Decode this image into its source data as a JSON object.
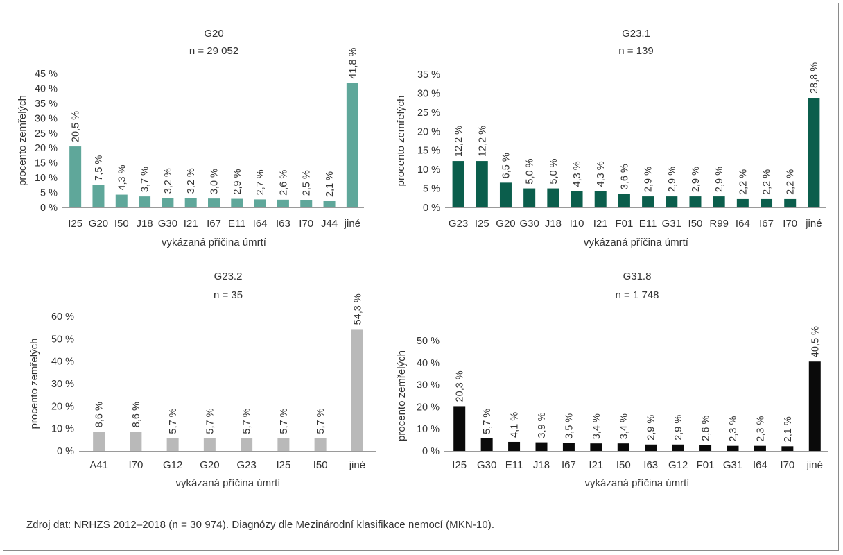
{
  "chart_data": [
    {
      "type": "bar",
      "title": "G20",
      "subtitle": "n = 29 052",
      "xlabel": "vykázaná příčina úmrtí",
      "ylabel": "procento zemřelých",
      "ylim": [
        0,
        45
      ],
      "yticks": [
        0,
        5,
        10,
        15,
        20,
        25,
        30,
        35,
        40,
        45
      ],
      "ytick_labels": [
        "0 %",
        "5 %",
        "10 %",
        "15 %",
        "20 %",
        "25 %",
        "30 %",
        "35 %",
        "40 %",
        "45 %"
      ],
      "color": "#5fa79a",
      "grid": false,
      "categories": [
        "I25",
        "G20",
        "I50",
        "J18",
        "G30",
        "I21",
        "I67",
        "E11",
        "I64",
        "I63",
        "I70",
        "J44",
        "jiné"
      ],
      "values": [
        20.5,
        7.5,
        4.3,
        3.7,
        3.2,
        3.2,
        3.0,
        2.9,
        2.7,
        2.6,
        2.5,
        2.1,
        41.8
      ],
      "data_labels": [
        "20,5 %",
        "7,5 %",
        "4,3 %",
        "3,7 %",
        "3,2 %",
        "3,2 %",
        "3,0 %",
        "2,9 %",
        "2,7 %",
        "2,6 %",
        "2,5 %",
        "2,1 %",
        "41,8 %"
      ]
    },
    {
      "type": "bar",
      "title": "G23.1",
      "subtitle": "n = 139",
      "xlabel": "vykázaná příčina úmrtí",
      "ylabel": "procento zemřelých",
      "ylim": [
        0,
        35
      ],
      "yticks": [
        0,
        5,
        10,
        15,
        20,
        25,
        30,
        35
      ],
      "ytick_labels": [
        "0 %",
        "5 %",
        "10 %",
        "15 %",
        "20 %",
        "25 %",
        "30 %",
        "35 %"
      ],
      "color": "#0b5e4c",
      "grid": false,
      "categories": [
        "G23",
        "I25",
        "G20",
        "G30",
        "J18",
        "I10",
        "I21",
        "F01",
        "E11",
        "G31",
        "I50",
        "R99",
        "I64",
        "I67",
        "I70",
        "jiné"
      ],
      "values": [
        12.2,
        12.2,
        6.5,
        5.0,
        5.0,
        4.3,
        4.3,
        3.6,
        2.9,
        2.9,
        2.9,
        2.9,
        2.2,
        2.2,
        2.2,
        28.8
      ],
      "data_labels": [
        "12,2 %",
        "12,2 %",
        "6,5 %",
        "5,0 %",
        "5,0 %",
        "4,3 %",
        "4,3 %",
        "3,6 %",
        "2,9 %",
        "2,9 %",
        "2,9 %",
        "2,9 %",
        "2,2 %",
        "2,2 %",
        "2,2 %",
        "28,8 %"
      ]
    },
    {
      "type": "bar",
      "title": "G23.2",
      "subtitle": "n = 35",
      "xlabel": "vykázaná příčina úmrtí",
      "ylabel": "procento zemřelých",
      "ylim": [
        0,
        60
      ],
      "yticks": [
        0,
        10,
        20,
        30,
        40,
        50,
        60
      ],
      "ytick_labels": [
        "0 %",
        "10 %",
        "20 %",
        "30 %",
        "40 %",
        "50 %",
        "60 %"
      ],
      "color": "#b9b9b9",
      "grid": false,
      "categories": [
        "A41",
        "I70",
        "G12",
        "G20",
        "G23",
        "I25",
        "I50",
        "jiné"
      ],
      "values": [
        8.6,
        8.6,
        5.7,
        5.7,
        5.7,
        5.7,
        5.7,
        54.3
      ],
      "data_labels": [
        "8,6 %",
        "8,6 %",
        "5,7 %",
        "5,7 %",
        "5,7 %",
        "5,7 %",
        "5,7 %",
        "54,3 %"
      ]
    },
    {
      "type": "bar",
      "title": "G31.8",
      "subtitle": "n = 1 748",
      "xlabel": "vykázaná příčina úmrtí",
      "ylabel": "procento zemřelých",
      "ylim": [
        0,
        50
      ],
      "yticks": [
        0,
        10,
        20,
        30,
        40,
        50
      ],
      "ytick_labels": [
        "0 %",
        "10 %",
        "20 %",
        "30 %",
        "40 %",
        "50 %"
      ],
      "color": "#0a0a0a",
      "grid": false,
      "categories": [
        "I25",
        "G30",
        "E11",
        "J18",
        "I67",
        "I21",
        "I50",
        "I63",
        "G12",
        "F01",
        "G31",
        "I64",
        "I70",
        "jiné"
      ],
      "values": [
        20.3,
        5.7,
        4.1,
        3.9,
        3.5,
        3.4,
        3.4,
        2.9,
        2.9,
        2.6,
        2.3,
        2.3,
        2.1,
        40.5
      ],
      "data_labels": [
        "20,3 %",
        "5,7 %",
        "4,1 %",
        "3,9 %",
        "3,5 %",
        "3,4 %",
        "3,4 %",
        "2,9 %",
        "2,9 %",
        "2,6 %",
        "2,3 %",
        "2,3 %",
        "2,1 %",
        "40,5 %"
      ]
    }
  ],
  "source_note": "Zdroj dat: NRHZS 2012–2018 (n = 30 974). Diagnózy dle Mezinárodní klasifikace nemocí (MKN-10)."
}
